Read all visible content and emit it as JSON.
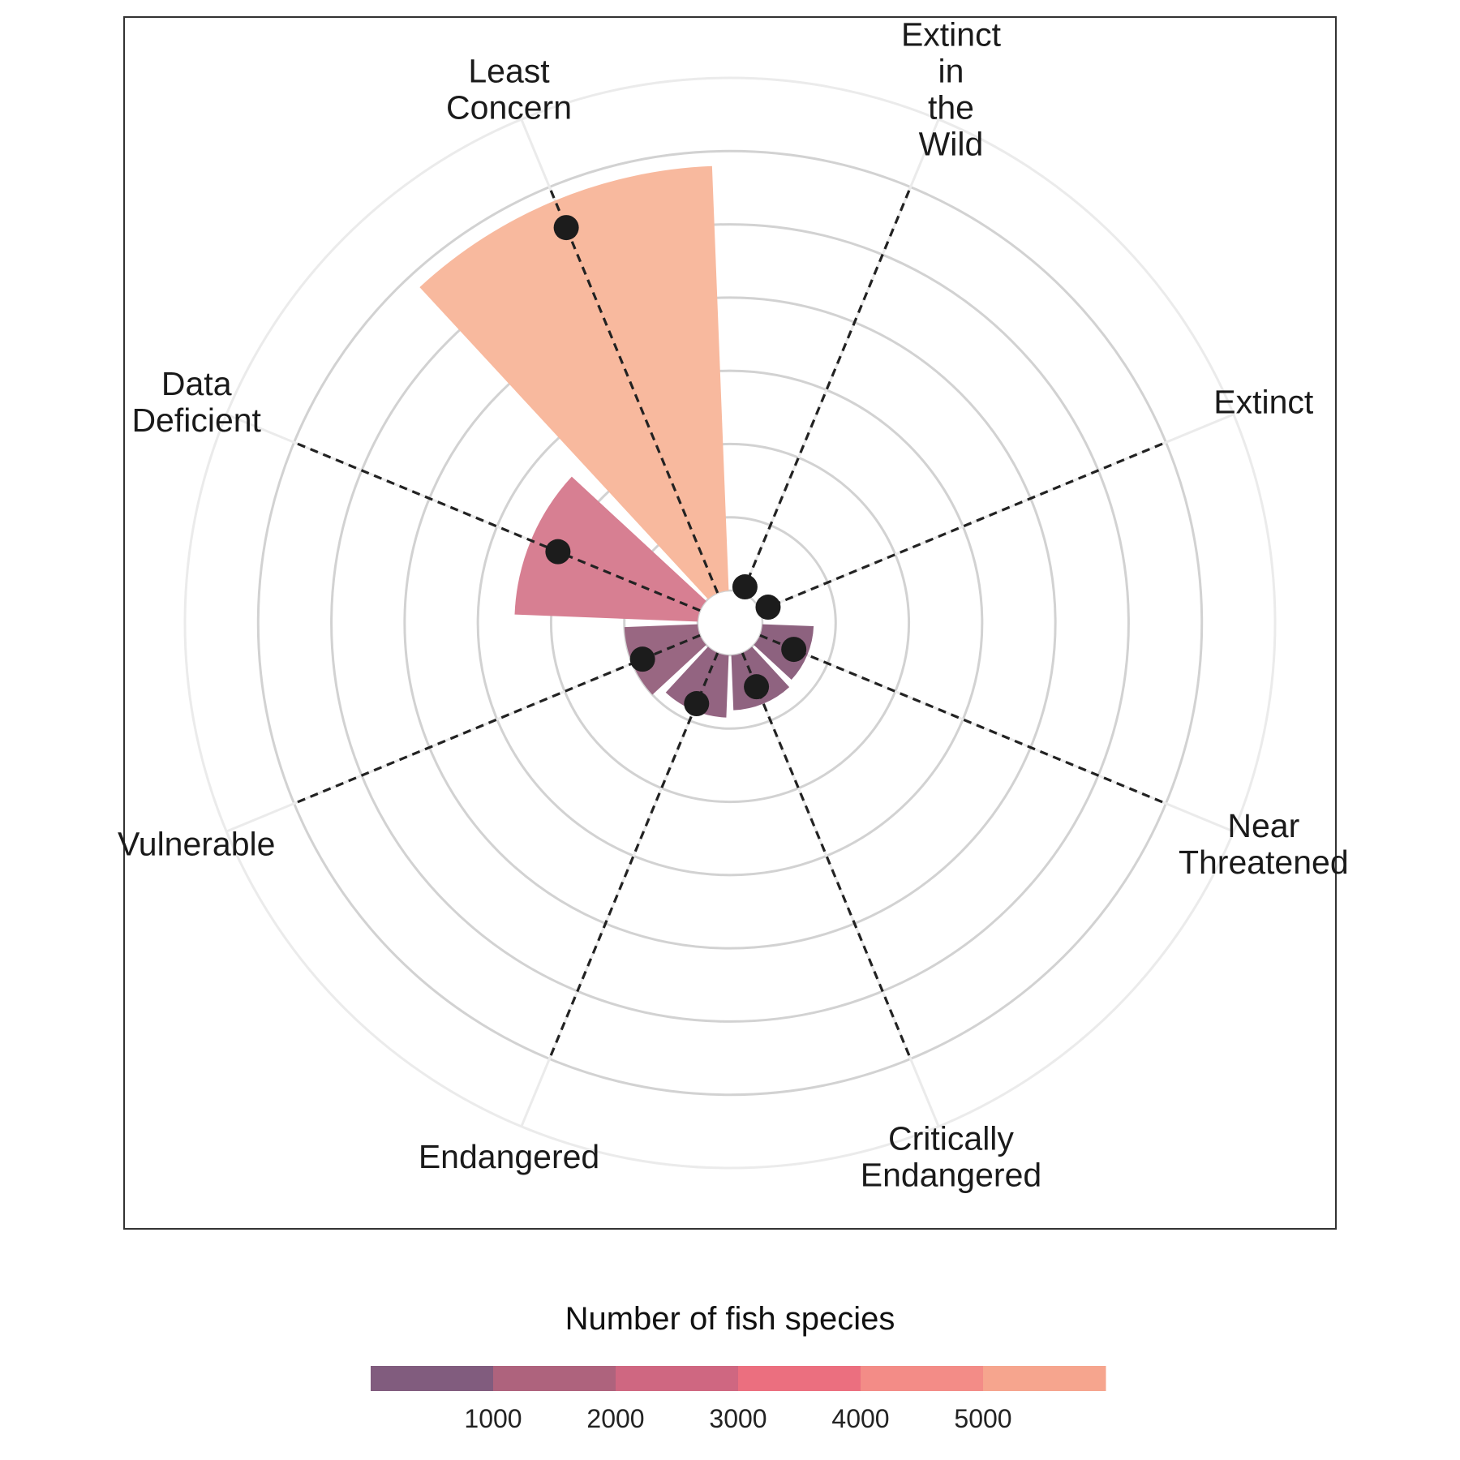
{
  "chart_data": {
    "type": "polar-bar",
    "categories": [
      "Extinct in the Wild",
      "Extinct",
      "Near Threatened",
      "Critically Endangered",
      "Endangered",
      "Vulnerable",
      "Data Deficient",
      "Least Concern"
    ],
    "category_label_lines": [
      [
        "Extinct",
        "in",
        "the",
        "Wild"
      ],
      [
        "Extinct"
      ],
      [
        "Near",
        "Threatened"
      ],
      [
        "Critically",
        "Endangered"
      ],
      [
        "Endangered"
      ],
      [
        "Vulnerable"
      ],
      [
        "Data",
        "Deficient"
      ],
      [
        "Least",
        "Concern"
      ]
    ],
    "bar_values": [
      0,
      0,
      700,
      750,
      850,
      1000,
      2500,
      5800
    ],
    "point_values": [
      90,
      120,
      500,
      500,
      750,
      850,
      2100,
      5400
    ],
    "radial_gridlines": [
      1000,
      2000,
      3000,
      4000,
      5000,
      6000,
      7000
    ],
    "radial_max": 7000,
    "inner_hole_value": 300,
    "legend": {
      "title": "Number of fish species",
      "tick_labels": [
        "1000",
        "2000",
        "3000",
        "4000",
        "5000"
      ],
      "tick_values": [
        1000,
        2000,
        3000,
        4000,
        5000
      ],
      "range": [
        0,
        6000
      ],
      "colors": [
        "#815c7e",
        "#ae637d",
        "#cf6781",
        "#eb6f7f",
        "#f38c87",
        "#f6a58e"
      ]
    },
    "colors": {
      "bar_low": "#8d627f",
      "bar_mid": "#d77f92",
      "bar_high": "#f8b99e",
      "point": "#1c1c1c",
      "gridline": "#d2d2d2",
      "outer_gridline": "#ebebeb",
      "spoke": "#222222",
      "panel_border": "#333333"
    },
    "legend_position": "bottom",
    "grid": true
  }
}
